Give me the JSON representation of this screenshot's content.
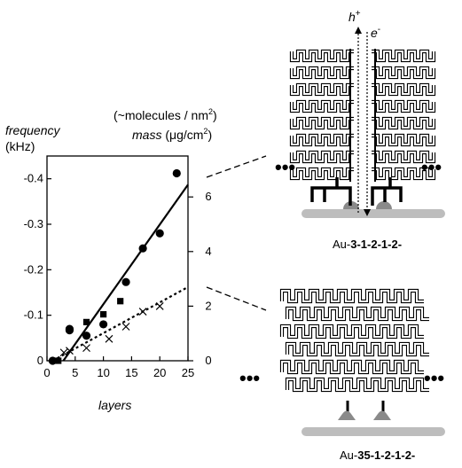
{
  "left_axis": {
    "title": "frequency",
    "unit": "(kHz)"
  },
  "right_axis": {
    "title_line1_prefix": "(~molecules / nm",
    "title_line1_sup": "2",
    "title_line1_suffix": ")",
    "title_line2_italic": "mass",
    "title_line2_unit_prefix": " (μg/cm",
    "title_line2_unit_sup": "2",
    "title_line2_unit_suffix": ")"
  },
  "x_axis_title": "layers",
  "structure_top": {
    "label_prefix": "Au-",
    "label_bold": "3-1-2-1-2-",
    "hole_label": "h",
    "hole_sup": "+",
    "electron_label": "e",
    "electron_sup": "-"
  },
  "structure_bottom": {
    "label_prefix": "Au-",
    "label_bold": "35-1-2-1-2-"
  },
  "ellipsis": "•••",
  "chart_data": {
    "type": "scatter",
    "xlabel": "layers",
    "ylabel": "frequency (kHz)",
    "y2label": "mass (μg/cm2) (~molecules / nm2)",
    "xlim": [
      0,
      25
    ],
    "ylim": [
      0,
      -0.45
    ],
    "y2lim": [
      0,
      7.5
    ],
    "x_ticks": [
      0,
      5,
      10,
      15,
      20,
      25
    ],
    "y_ticks": [
      0,
      -0.1,
      -0.2,
      -0.3,
      -0.4
    ],
    "y_tick_labels": [
      "0",
      "-0.1",
      "-0.2",
      "-0.3",
      "-0.4"
    ],
    "y2_ticks": [
      0,
      2,
      4,
      6
    ],
    "grid": false,
    "series": [
      {
        "marker": "circle",
        "points": [
          [
            1,
            0
          ],
          [
            4,
            -0.067
          ],
          [
            4,
            -0.07
          ],
          [
            7,
            -0.055
          ],
          [
            10,
            -0.08
          ],
          [
            14,
            -0.173
          ],
          [
            17,
            -0.247
          ],
          [
            20,
            -0.28
          ],
          [
            23,
            -0.412
          ]
        ]
      },
      {
        "marker": "square",
        "points": [
          [
            2,
            0
          ],
          [
            7,
            -0.085
          ],
          [
            10,
            -0.102
          ],
          [
            13,
            -0.131
          ]
        ]
      },
      {
        "marker": "x",
        "points": [
          [
            3,
            -0.018
          ],
          [
            4,
            -0.022
          ],
          [
            7,
            -0.028
          ],
          [
            11,
            -0.048
          ],
          [
            14,
            -0.075
          ],
          [
            17,
            -0.108
          ],
          [
            20,
            -0.12
          ]
        ]
      }
    ],
    "fits": [
      {
        "style": "solid",
        "from": [
          2.9,
          0
        ],
        "to": [
          25,
          -0.387
        ]
      },
      {
        "style": "dotted",
        "from": [
          1.0,
          0
        ],
        "to": [
          25,
          -0.162
        ]
      }
    ]
  }
}
